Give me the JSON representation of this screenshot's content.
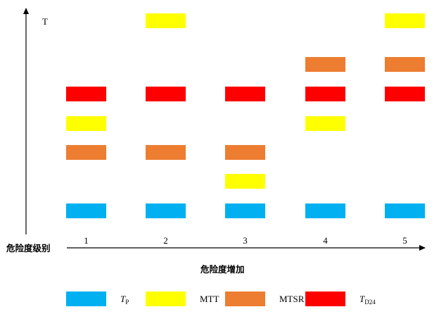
{
  "diagram": {
    "y_axis_label": "T",
    "x_axis_label": "危险度级别",
    "x_axis_caption": "危险度增加",
    "levels": [
      "1",
      "2",
      "3",
      "4",
      "5"
    ],
    "colors": {
      "TP": "#00B0F0",
      "MTT": "#FFFF00",
      "MTSR": "#ED7D31",
      "TD24": "#FF0000"
    },
    "columns": [
      {
        "level": "1",
        "order_bottom_to_top": [
          "TP",
          "MTSR",
          "MTT",
          "TD24"
        ]
      },
      {
        "level": "2",
        "order_bottom_to_top": [
          "TP",
          "MTSR",
          "TD24",
          "MTT"
        ]
      },
      {
        "level": "3",
        "order_bottom_to_top": [
          "TP",
          "MTT",
          "MTSR",
          "TD24"
        ]
      },
      {
        "level": "4",
        "order_bottom_to_top": [
          "TP",
          "MTT",
          "TD24",
          "MTSR"
        ]
      },
      {
        "level": "5",
        "order_bottom_to_top": [
          "TP",
          "TD24",
          "MTSR",
          "MTT"
        ]
      }
    ],
    "legend": [
      {
        "key": "TP",
        "main": "T",
        "sub": "P",
        "italic": true
      },
      {
        "key": "MTT",
        "main": "MTT",
        "sub": "",
        "italic": false
      },
      {
        "key": "MTSR",
        "main": "MTSR",
        "sub": "",
        "italic": false
      },
      {
        "key": "TD24",
        "main": "T",
        "sub": "D24",
        "italic": true
      }
    ]
  }
}
